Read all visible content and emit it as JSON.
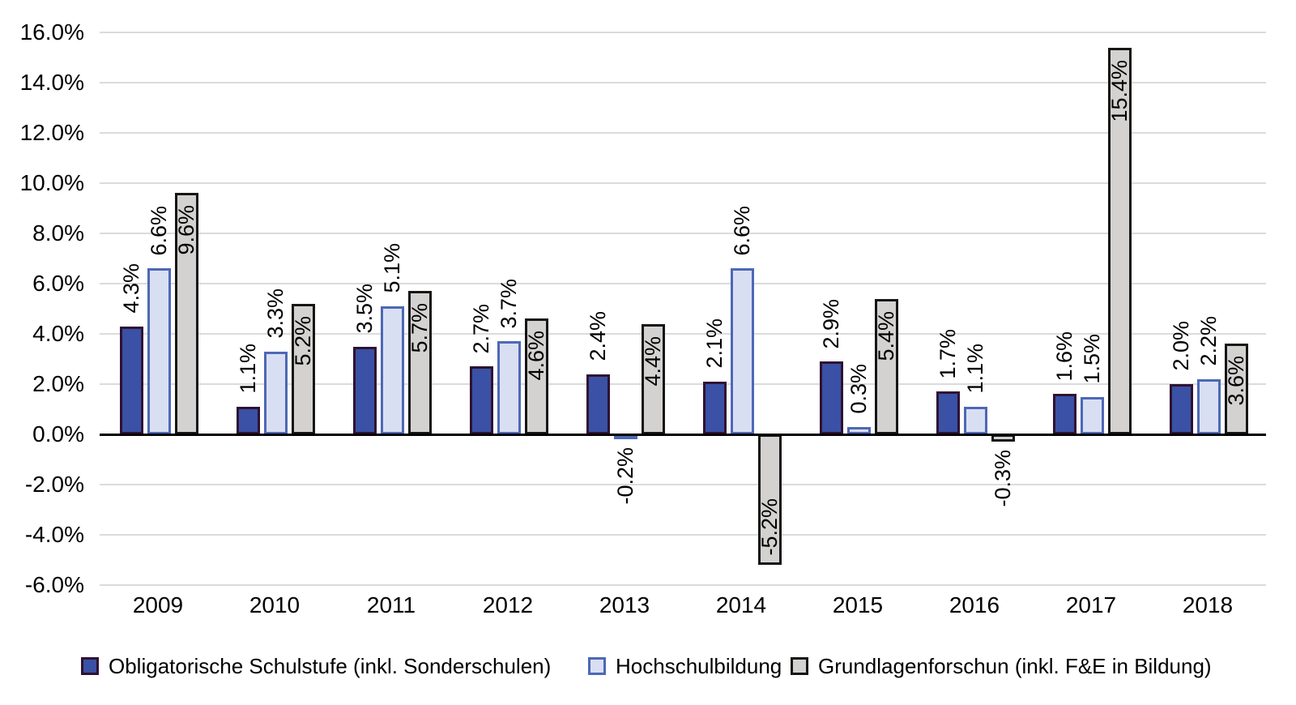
{
  "chart_data": {
    "type": "bar",
    "title": "",
    "xlabel": "",
    "ylabel": "",
    "categories": [
      "2009",
      "2010",
      "2011",
      "2012",
      "2013",
      "2014",
      "2015",
      "2016",
      "2017",
      "2018"
    ],
    "series": [
      {
        "name": "Obligatorische Schulstufe (inkl. Sonderschulen)",
        "values": [
          4.3,
          1.1,
          3.5,
          2.7,
          2.4,
          2.1,
          2.9,
          1.7,
          1.6,
          2.0
        ],
        "labels": [
          "4.3%",
          "1.1%",
          "3.5%",
          "2.7%",
          "2.4%",
          "2.1%",
          "2.9%",
          "1.7%",
          "1.6%",
          "2.0%"
        ],
        "fill": "#3A51A5",
        "border": "#2F1232",
        "label_placement": "outside"
      },
      {
        "name": "Hochschulbildung",
        "values": [
          6.6,
          3.3,
          5.1,
          3.7,
          -0.2,
          6.6,
          0.3,
          1.1,
          1.5,
          2.2
        ],
        "labels": [
          "6.6%",
          "3.3%",
          "5.1%",
          "3.7%",
          "-0.2%",
          "6.6%",
          "0.3%",
          "1.1%",
          "1.5%",
          "2.2%"
        ],
        "fill": "#D9DFF3",
        "border": "#4D68B6",
        "label_placement": "outside"
      },
      {
        "name": "Grundlagenforschun (inkl. F&E in Bildung)",
        "values": [
          9.6,
          5.2,
          5.7,
          4.6,
          4.4,
          -5.2,
          5.4,
          -0.3,
          15.4,
          3.6
        ],
        "labels": [
          "9.6%",
          "5.2%",
          "5.7%",
          "4.6%",
          "4.4%",
          "-5.2%",
          "5.4%",
          "-0.3%",
          "15.4%",
          "3.6%"
        ],
        "fill": "#D3D2D0",
        "border": "#161616",
        "label_placement": "inside"
      }
    ],
    "ylim": [
      -6,
      16
    ],
    "ytick_step": 2,
    "ytick_labels": [
      "16.0%",
      "14.0%",
      "12.0%",
      "10.0%",
      "8.0%",
      "6.0%",
      "4.0%",
      "2.0%",
      "0.0%",
      "-2.0%",
      "-4.0%",
      "-6.0%"
    ],
    "grid": true,
    "gridline_color": "#DBDBDB",
    "axis_color": "#000000",
    "legend_position": "bottom"
  }
}
